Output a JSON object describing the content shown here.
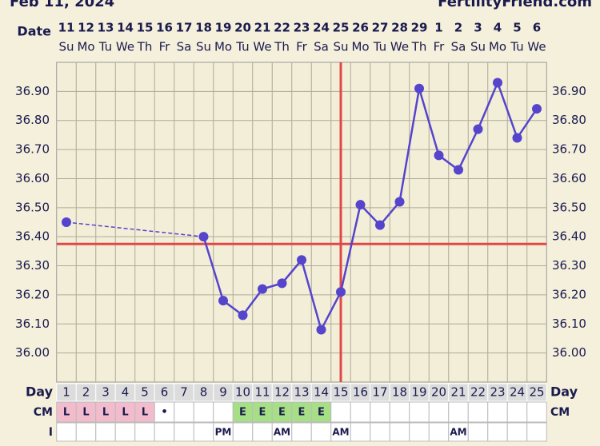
{
  "header": {
    "date": "Feb 11, 2024",
    "site": "FertilityFriend.com"
  },
  "chart_data": {
    "type": "line",
    "date_label": "Date",
    "dates": [
      "11",
      "12",
      "13",
      "14",
      "15",
      "16",
      "17",
      "18",
      "19",
      "20",
      "21",
      "22",
      "23",
      "24",
      "25",
      "26",
      "27",
      "28",
      "29",
      "1",
      "2",
      "3",
      "4",
      "5",
      "6"
    ],
    "weekdays": [
      "Su",
      "Mo",
      "Tu",
      "We",
      "Th",
      "Fr",
      "Sa",
      "Su",
      "Mo",
      "Tu",
      "We",
      "Th",
      "Fr",
      "Sa",
      "Su",
      "Mo",
      "Tu",
      "We",
      "Th",
      "Fr",
      "Sa",
      "Su",
      "Mo",
      "Tu",
      "We"
    ],
    "ylim": [
      35.9,
      37.0
    ],
    "yticks": [
      {
        "value": 36.0,
        "label": "36.00"
      },
      {
        "value": 36.1,
        "label": "36.10"
      },
      {
        "value": 36.2,
        "label": "36.20"
      },
      {
        "value": 36.3,
        "label": "36.30"
      },
      {
        "value": 36.4,
        "label": "36.40"
      },
      {
        "value": 36.5,
        "label": "36.50"
      },
      {
        "value": 36.6,
        "label": "36.60"
      },
      {
        "value": 36.7,
        "label": "36.70"
      },
      {
        "value": 36.8,
        "label": "36.80"
      },
      {
        "value": 36.9,
        "label": "36.90"
      }
    ],
    "grid": true,
    "series": [
      {
        "color": "#5544cc",
        "values": [
          36.45,
          null,
          null,
          null,
          null,
          null,
          null,
          36.4,
          36.18,
          36.13,
          36.22,
          36.24,
          36.32,
          36.08,
          36.21,
          36.51,
          36.44,
          36.52,
          36.91,
          36.68,
          36.63,
          36.77,
          36.93,
          36.74,
          36.84
        ]
      }
    ],
    "coverline": 36.375,
    "coverline_color": "#e04848",
    "ovulation_day": 15,
    "day_label": "Day",
    "days": [
      1,
      2,
      3,
      4,
      5,
      6,
      7,
      8,
      9,
      10,
      11,
      12,
      13,
      14,
      15,
      16,
      17,
      18,
      19,
      20,
      21,
      22,
      23,
      24,
      25
    ],
    "cm_label": "CM",
    "cm": [
      "L",
      "L",
      "L",
      "L",
      "L",
      "•",
      null,
      null,
      null,
      "E",
      "E",
      "E",
      "E",
      "E",
      null,
      null,
      null,
      null,
      null,
      null,
      null,
      null,
      null,
      null,
      null
    ],
    "cm_colors": {
      "L": "#f2bccd",
      "E": "#a6df86"
    },
    "i_label": "I",
    "intercourse": [
      null,
      null,
      null,
      null,
      null,
      null,
      null,
      null,
      "PM",
      null,
      null,
      "AM",
      null,
      null,
      "AM",
      null,
      null,
      null,
      null,
      null,
      "AM",
      null,
      null,
      null,
      null
    ]
  }
}
